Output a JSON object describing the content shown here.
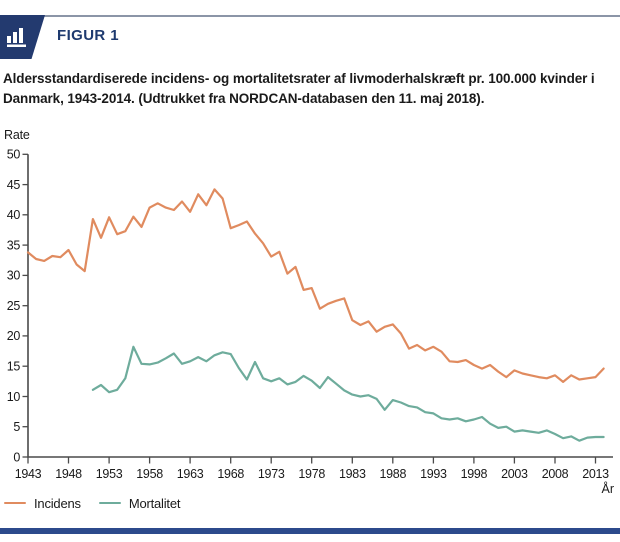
{
  "header": {
    "figure_label": "FIGUR 1",
    "icon": "bar-chart-icon"
  },
  "title": "Aldersstandardiserede incidens- og mortalitetsrater af livmoderhalskræft pr. 100.000 kvinder i Danmark, 1943-2014. (Udtrukket fra NORDCAN-databasen den 11. maj 2018).",
  "colors": {
    "top_rule": "#8B95A7",
    "badge_navy": "#233A6F",
    "figure_label_text": "#1E3A6F",
    "bottom_bar": "#2C4A8C",
    "title_text": "#1A1A1A",
    "axis_line": "#4A4A4A",
    "tick_text": "#1A1A1A",
    "incidens": "#E08B5F",
    "mortalitet": "#6EAC9C"
  },
  "chart_data": {
    "type": "line",
    "title": "",
    "ylabel": "Rate",
    "xlabel": "År",
    "ylim": [
      0,
      50
    ],
    "xlim": [
      1943,
      2014
    ],
    "grid": false,
    "legend_position": "bottom-left",
    "y_ticks": [
      0,
      5,
      10,
      15,
      20,
      25,
      30,
      35,
      40,
      45,
      50
    ],
    "x_ticks": [
      1943,
      1948,
      1953,
      1958,
      1963,
      1968,
      1973,
      1978,
      1983,
      1988,
      1993,
      1998,
      2003,
      2008,
      2013
    ],
    "series": [
      {
        "name": "Incidens",
        "color": "#E08B5F",
        "start_year": 1943,
        "values": [
          33.8,
          32.7,
          32.4,
          33.2,
          33.0,
          34.2,
          31.8,
          30.7,
          39.3,
          36.2,
          39.6,
          36.8,
          37.3,
          39.7,
          38.0,
          41.2,
          41.9,
          41.2,
          40.8,
          42.2,
          40.5,
          43.4,
          41.6,
          44.2,
          42.7,
          37.8,
          38.3,
          38.9,
          36.9,
          35.3,
          33.1,
          33.9,
          30.3,
          31.4,
          27.6,
          27.9,
          24.5,
          25.3,
          25.8,
          26.2,
          22.6,
          21.8,
          22.4,
          20.7,
          21.5,
          21.9,
          20.4,
          17.9,
          18.5,
          17.6,
          18.2,
          17.4,
          15.8,
          15.7,
          16.0,
          15.2,
          14.6,
          15.2,
          14.1,
          13.2,
          14.3,
          13.8,
          13.5,
          13.2,
          13.0,
          13.5,
          12.4,
          13.5,
          12.8,
          13.0,
          13.2,
          14.6
        ]
      },
      {
        "name": "Mortalitet",
        "color": "#6EAC9C",
        "start_year": 1951,
        "values": [
          11.1,
          11.9,
          10.7,
          11.1,
          13.0,
          18.2,
          15.4,
          15.3,
          15.6,
          16.3,
          17.1,
          15.4,
          15.8,
          16.5,
          15.8,
          16.8,
          17.3,
          17.0,
          14.7,
          12.8,
          15.7,
          13.0,
          12.5,
          13.0,
          12.0,
          12.4,
          13.4,
          12.6,
          11.4,
          13.2,
          12.1,
          11.0,
          10.3,
          10.0,
          10.2,
          9.6,
          7.8,
          9.4,
          9.0,
          8.4,
          8.2,
          7.4,
          7.2,
          6.4,
          6.2,
          6.4,
          5.9,
          6.2,
          6.6,
          5.5,
          4.8,
          5.0,
          4.2,
          4.4,
          4.2,
          4.0,
          4.4,
          3.8,
          3.1,
          3.4,
          2.7,
          3.2,
          3.3,
          3.3
        ]
      }
    ]
  }
}
